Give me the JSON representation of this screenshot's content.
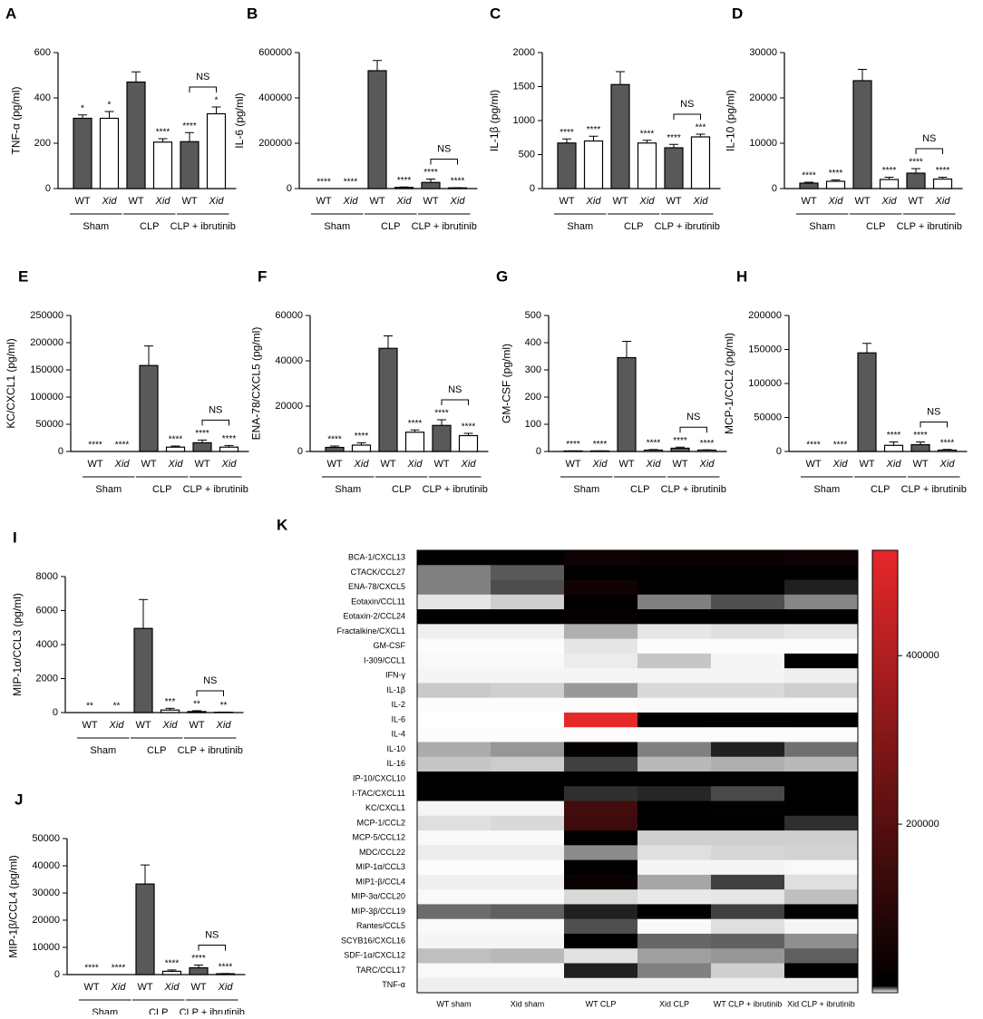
{
  "chart_data": [
    {
      "type": "bar",
      "panel": "A",
      "ylabel": "TNF-α (pg/ml)",
      "categories": [
        "WT",
        "Xid",
        "WT",
        "Xid",
        "WT",
        "Xid"
      ],
      "groups": [
        "Sham",
        "CLP",
        "CLP + ibrutinib"
      ],
      "values": [
        310,
        310,
        470,
        205,
        207,
        330
      ],
      "errors": [
        15,
        30,
        45,
        15,
        40,
        30
      ],
      "colors": [
        "#595959",
        "#ffffff",
        "#595959",
        "#ffffff",
        "#595959",
        "#ffffff"
      ],
      "significance": [
        "*",
        "*",
        null,
        "****",
        "****",
        "*"
      ],
      "comparison_label": "NS",
      "ylim": [
        0,
        600
      ],
      "yticks": [
        0,
        200,
        400,
        600
      ]
    },
    {
      "type": "bar",
      "panel": "B",
      "ylabel": "IL-6 (pg/ml)",
      "categories": [
        "WT",
        "Xid",
        "WT",
        "Xid",
        "WT",
        "Xid"
      ],
      "groups": [
        "Sham",
        "CLP",
        "CLP + ibrutinib"
      ],
      "values": [
        0,
        0,
        520000,
        5000,
        27000,
        3000
      ],
      "errors": [
        0,
        0,
        45000,
        2000,
        15000,
        1000
      ],
      "colors": [
        "#595959",
        "#ffffff",
        "#595959",
        "#ffffff",
        "#595959",
        "#ffffff"
      ],
      "significance": [
        "****",
        "****",
        null,
        "****",
        "****",
        "****"
      ],
      "comparison_label": "NS",
      "ylim": [
        0,
        600000
      ],
      "yticks": [
        0,
        200000,
        400000,
        600000
      ]
    },
    {
      "type": "bar",
      "panel": "C",
      "ylabel": "IL-1β (pg/ml)",
      "categories": [
        "WT",
        "Xid",
        "WT",
        "Xid",
        "WT",
        "Xid"
      ],
      "groups": [
        "Sham",
        "CLP",
        "CLP + ibrutinib"
      ],
      "values": [
        670,
        700,
        1530,
        670,
        600,
        760
      ],
      "errors": [
        60,
        70,
        190,
        40,
        50,
        40
      ],
      "colors": [
        "#595959",
        "#ffffff",
        "#595959",
        "#ffffff",
        "#595959",
        "#ffffff"
      ],
      "significance": [
        "****",
        "****",
        null,
        "****",
        "****",
        "***"
      ],
      "comparison_label": "NS",
      "ylim": [
        0,
        2000
      ],
      "yticks": [
        0,
        500,
        1000,
        1500,
        2000
      ]
    },
    {
      "type": "bar",
      "panel": "D",
      "ylabel": "IL-10 (pg/ml)",
      "categories": [
        "WT",
        "Xid",
        "WT",
        "Xid",
        "WT",
        "Xid"
      ],
      "groups": [
        "Sham",
        "CLP",
        "CLP + ibrutinib"
      ],
      "values": [
        1200,
        1600,
        23800,
        2000,
        3400,
        2100
      ],
      "errors": [
        200,
        300,
        2500,
        500,
        1000,
        400
      ],
      "colors": [
        "#595959",
        "#ffffff",
        "#595959",
        "#ffffff",
        "#595959",
        "#ffffff"
      ],
      "significance": [
        "****",
        "****",
        null,
        "****",
        "****",
        "****"
      ],
      "comparison_label": "NS",
      "ylim": [
        0,
        30000
      ],
      "yticks": [
        0,
        10000,
        20000,
        30000
      ]
    },
    {
      "type": "bar",
      "panel": "E",
      "ylabel": "KC/CXCL1 (pg/ml)",
      "categories": [
        "WT",
        "Xid",
        "WT",
        "Xid",
        "WT",
        "Xid"
      ],
      "groups": [
        "Sham",
        "CLP",
        "CLP + ibrutinib"
      ],
      "values": [
        0,
        0,
        158000,
        8000,
        16000,
        8000
      ],
      "errors": [
        0,
        0,
        36000,
        2000,
        5000,
        3000
      ],
      "colors": [
        "#595959",
        "#ffffff",
        "#595959",
        "#ffffff",
        "#595959",
        "#ffffff"
      ],
      "significance": [
        "****",
        "****",
        null,
        "****",
        "****",
        "****"
      ],
      "comparison_label": "NS",
      "ylim": [
        0,
        250000
      ],
      "yticks": [
        0,
        50000,
        100000,
        150000,
        200000,
        250000
      ]
    },
    {
      "type": "bar",
      "panel": "F",
      "ylabel": "ENA-78/CXCL5 (pg/ml)",
      "categories": [
        "WT",
        "Xid",
        "WT",
        "Xid",
        "WT",
        "Xid"
      ],
      "groups": [
        "Sham",
        "CLP",
        "CLP + ibrutinib"
      ],
      "values": [
        1800,
        2800,
        45500,
        8500,
        11500,
        7000
      ],
      "errors": [
        600,
        1000,
        5500,
        1000,
        2500,
        1000
      ],
      "colors": [
        "#595959",
        "#ffffff",
        "#595959",
        "#ffffff",
        "#595959",
        "#ffffff"
      ],
      "significance": [
        "****",
        "****",
        null,
        "****",
        "****",
        "****"
      ],
      "comparison_label": "NS",
      "ylim": [
        0,
        60000
      ],
      "yticks": [
        0,
        20000,
        40000,
        60000
      ]
    },
    {
      "type": "bar",
      "panel": "G",
      "ylabel": "GM-CSF (pg/ml)",
      "categories": [
        "WT",
        "Xid",
        "WT",
        "Xid",
        "WT",
        "Xid"
      ],
      "groups": [
        "Sham",
        "CLP",
        "CLP + ibrutinib"
      ],
      "values": [
        2,
        2,
        345,
        5,
        12,
        5
      ],
      "errors": [
        0,
        0,
        60,
        2,
        4,
        1
      ],
      "colors": [
        "#595959",
        "#ffffff",
        "#595959",
        "#ffffff",
        "#595959",
        "#ffffff"
      ],
      "significance": [
        "****",
        "****",
        null,
        "****",
        "****",
        "****"
      ],
      "comparison_label": "NS",
      "ylim": [
        0,
        500
      ],
      "yticks": [
        0,
        100,
        200,
        300,
        400,
        500
      ]
    },
    {
      "type": "bar",
      "panel": "H",
      "ylabel": "MCP-1/CCL2 (pg/ml)",
      "categories": [
        "WT",
        "Xid",
        "WT",
        "Xid",
        "WT",
        "Xid"
      ],
      "groups": [
        "Sham",
        "CLP",
        "CLP + ibrutinib"
      ],
      "values": [
        0,
        0,
        145000,
        9000,
        10000,
        2000
      ],
      "errors": [
        0,
        0,
        14000,
        5000,
        4000,
        1000
      ],
      "colors": [
        "#595959",
        "#ffffff",
        "#595959",
        "#ffffff",
        "#595959",
        "#ffffff"
      ],
      "significance": [
        "****",
        "****",
        null,
        "****",
        "****",
        "****"
      ],
      "comparison_label": "NS",
      "ylim": [
        0,
        200000
      ],
      "yticks": [
        0,
        50000,
        100000,
        150000,
        200000
      ]
    },
    {
      "type": "bar",
      "panel": "I",
      "ylabel": "MIP-1α/CCL3 (pg/ml)",
      "categories": [
        "WT",
        "Xid",
        "WT",
        "Xid",
        "WT",
        "Xid"
      ],
      "groups": [
        "Sham",
        "CLP",
        "CLP + ibrutinib"
      ],
      "values": [
        0,
        0,
        4950,
        150,
        60,
        20
      ],
      "errors": [
        0,
        0,
        1700,
        100,
        50,
        10
      ],
      "colors": [
        "#595959",
        "#ffffff",
        "#595959",
        "#ffffff",
        "#595959",
        "#ffffff"
      ],
      "significance": [
        "**",
        "**",
        null,
        "***",
        "**",
        "**"
      ],
      "comparison_label": "NS",
      "ylim": [
        0,
        8000
      ],
      "yticks": [
        0,
        2000,
        4000,
        6000,
        8000
      ]
    },
    {
      "type": "bar",
      "panel": "J",
      "ylabel": "MIP-1β/CCL4 (pg/ml)",
      "categories": [
        "WT",
        "Xid",
        "WT",
        "Xid",
        "WT",
        "Xid"
      ],
      "groups": [
        "Sham",
        "CLP",
        "CLP + ibrutinib"
      ],
      "values": [
        0,
        0,
        33300,
        1200,
        2500,
        300
      ],
      "errors": [
        0,
        0,
        7000,
        500,
        1000,
        100
      ],
      "colors": [
        "#595959",
        "#ffffff",
        "#595959",
        "#ffffff",
        "#595959",
        "#ffffff"
      ],
      "significance": [
        "****",
        "****",
        null,
        "****",
        "****",
        "****"
      ],
      "comparison_label": "NS",
      "ylim": [
        0,
        50000
      ],
      "yticks": [
        0,
        10000,
        20000,
        30000,
        40000,
        50000
      ]
    },
    {
      "type": "heatmap",
      "panel": "K",
      "rows": [
        "BCA-1/CXCL13",
        "CTACK/CCL27",
        "ENA-78/CXCL5",
        "Eotaxin/CCL11",
        "Eotaxin-2/CCL24",
        "Fractalkine/CXCL1",
        "GM-CSF",
        "I-309/CCL1",
        "IFN-γ",
        "IL-1β",
        "IL-2",
        "IL-6",
        "IL-4",
        "IL-10",
        "IL-16",
        "IP-10/CXCL10",
        "I-TAC/CXCL11",
        "KC/CXCL1",
        "MCP-1/CCL2",
        "MCP-5/CCL12",
        "MDC/CCL22",
        "MIP-1α/CCL3",
        "MIP1-β/CCL4",
        "MIP-3α/CCL20",
        "MIP-3β/CCL19",
        "Rantes/CCL5",
        "SCYB16/CXCL16",
        "SDF-1α/CXCL12",
        "TARC/CCL17",
        "TNF-α"
      ],
      "columns": [
        "WT sham",
        "Xid sham",
        "WT CLP",
        "Xid CLP",
        "WT CLP + ibrutinib",
        "Xid CLP + ibrutinib"
      ],
      "values": [
        [
          9000,
          9000,
          40000,
          35000,
          35000,
          40000
        ],
        [
          4000,
          5200,
          9000,
          8500,
          8500,
          8500
        ],
        [
          4000,
          5600,
          45500,
          8500,
          11500,
          7000
        ],
        [
          800,
          1500,
          8000,
          4000,
          5500,
          3800
        ],
        [
          8500,
          8500,
          20000,
          8500,
          8500,
          12000
        ],
        [
          500,
          500,
          2500,
          800,
          1000,
          800
        ],
        [
          100,
          100,
          800,
          100,
          100,
          100
        ],
        [
          200,
          200,
          600,
          1800,
          300,
          8000
        ],
        [
          300,
          300,
          300,
          300,
          300,
          500
        ],
        [
          1700,
          1500,
          3200,
          1200,
          1200,
          1500
        ],
        [
          100,
          100,
          100,
          200,
          200,
          200
        ],
        [
          0,
          0,
          520000,
          8000,
          12000,
          8000
        ],
        [
          100,
          100,
          100,
          100,
          100,
          100
        ],
        [
          2600,
          3300,
          20000,
          4000,
          7000,
          4500
        ],
        [
          1800,
          1600,
          6000,
          2200,
          2500,
          2200
        ],
        [
          9000,
          9000,
          9000,
          8500,
          8500,
          8500
        ],
        [
          9000,
          9000,
          6500,
          6800,
          5700,
          8500
        ],
        [
          300,
          300,
          158000,
          8000,
          16000,
          8000
        ],
        [
          1000,
          1200,
          145000,
          9000,
          10000,
          6500
        ],
        [
          200,
          200,
          8000,
          1500,
          1500,
          1500
        ],
        [
          600,
          600,
          3600,
          1000,
          1300,
          1400
        ],
        [
          100,
          100,
          8000,
          300,
          300,
          200
        ],
        [
          500,
          500,
          33000,
          2800,
          6000,
          1000
        ],
        [
          200,
          200,
          1200,
          700,
          800,
          2000
        ],
        [
          4600,
          5000,
          7000,
          8500,
          6000,
          8000
        ],
        [
          200,
          200,
          5500,
          200,
          1000,
          300
        ],
        [
          300,
          300,
          8500,
          4800,
          5000,
          3500
        ],
        [
          2000,
          2200,
          900,
          3000,
          3300,
          5000
        ],
        [
          200,
          200,
          7000,
          4000,
          1500,
          8500
        ],
        [
          500,
          500,
          500,
          500,
          500,
          500
        ]
      ],
      "colorscale": [
        {
          "value": 0,
          "color": "#ffffff"
        },
        {
          "value": 8000,
          "color": "#000000"
        },
        {
          "value": 525000,
          "color": "#e8282b"
        }
      ],
      "colorbar_lim": [
        0,
        525000
      ],
      "colorbar_ticks": [
        200000,
        400000
      ]
    }
  ]
}
